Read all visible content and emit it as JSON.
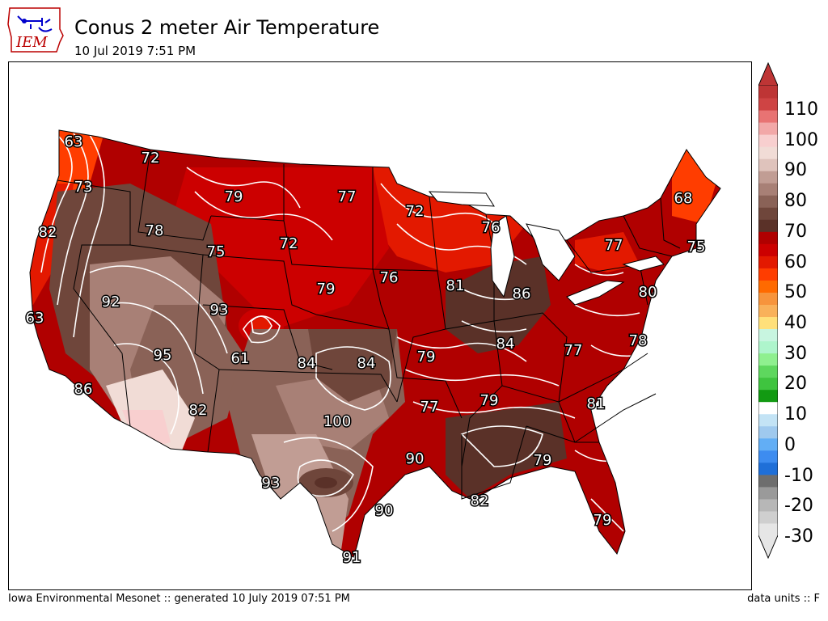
{
  "header": {
    "logo_text": "IEM",
    "title": "Conus 2 meter Air Temperature",
    "subtitle": "10 Jul 2019 7:51 PM"
  },
  "footer": {
    "credit": "Iowa Environmental Mesonet :: generated 10 July 2019 07:51 PM",
    "units": "data units :: F"
  },
  "colorbar": {
    "labels": [
      "110",
      "100",
      "90",
      "80",
      "70",
      "60",
      "50",
      "40",
      "30",
      "20",
      "10",
      "0",
      "-10",
      "-20",
      "-30"
    ],
    "colors": [
      "#e6e6e6",
      "#cfcfcf",
      "#b7b7b7",
      "#9a9a9a",
      "#6e6e6e",
      "#1f6fd8",
      "#3d8cf0",
      "#62aef5",
      "#9fc9ee",
      "#c3e3f5",
      "#ffffff",
      "#129a12",
      "#3fc43f",
      "#5ed75e",
      "#8ff08f",
      "#aef5cc",
      "#c8f5e0",
      "#ffe07a",
      "#f9b15a",
      "#f7943c",
      "#ff6a00",
      "#ff3d00",
      "#e31900",
      "#cc0000",
      "#b00000",
      "#5a3128",
      "#6f463b",
      "#8a6257",
      "#a88076",
      "#c19d94",
      "#dfc3bc",
      "#f1dcd6",
      "#f8cfcf",
      "#f2a8a8",
      "#e87373",
      "#cf4444",
      "#be3535"
    ]
  },
  "map_labels": [
    {
      "text": "63"
    },
    {
      "text": "72"
    },
    {
      "text": "73"
    },
    {
      "text": "79"
    },
    {
      "text": "77"
    },
    {
      "text": "72"
    },
    {
      "text": "76"
    },
    {
      "text": "68"
    },
    {
      "text": "82"
    },
    {
      "text": "78"
    },
    {
      "text": "75"
    },
    {
      "text": "72"
    },
    {
      "text": "77"
    },
    {
      "text": "75"
    },
    {
      "text": "92"
    },
    {
      "text": "93"
    },
    {
      "text": "79"
    },
    {
      "text": "76"
    },
    {
      "text": "81"
    },
    {
      "text": "86"
    },
    {
      "text": "80"
    },
    {
      "text": "63"
    },
    {
      "text": "95"
    },
    {
      "text": "61"
    },
    {
      "text": "84"
    },
    {
      "text": "84"
    },
    {
      "text": "79"
    },
    {
      "text": "84"
    },
    {
      "text": "77"
    },
    {
      "text": "78"
    },
    {
      "text": "86"
    },
    {
      "text": "82"
    },
    {
      "text": "100"
    },
    {
      "text": "77"
    },
    {
      "text": "79"
    },
    {
      "text": "81"
    },
    {
      "text": "90"
    },
    {
      "text": "79"
    },
    {
      "text": "93"
    },
    {
      "text": "90"
    },
    {
      "text": "82"
    },
    {
      "text": "79"
    },
    {
      "text": "91"
    }
  ]
}
